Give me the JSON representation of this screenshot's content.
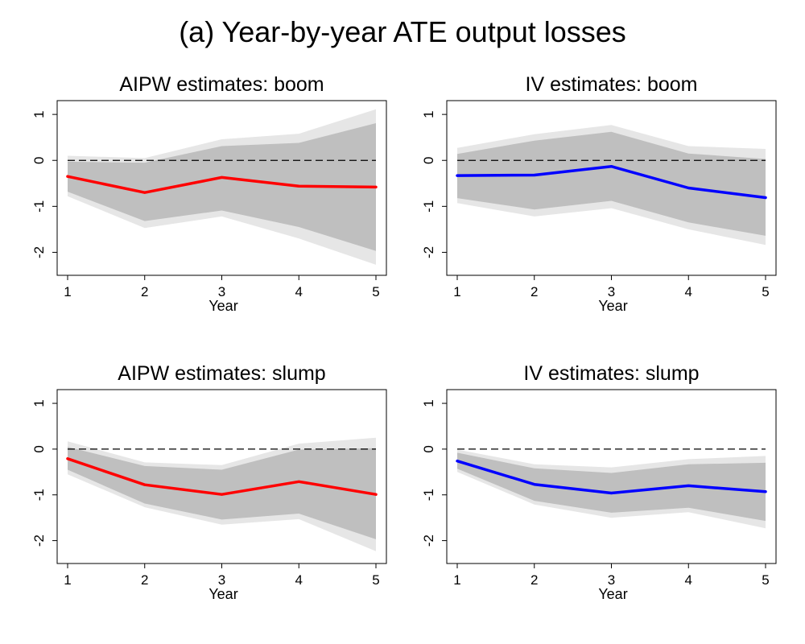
{
  "title": "(a) Year-by-year ATE output losses",
  "chart_data": [
    {
      "type": "line",
      "title": "AIPW estimates: boom",
      "xlabel": "Year",
      "ylabel": "",
      "x": [
        1,
        2,
        3,
        4,
        5
      ],
      "xticks": [
        "1",
        "2",
        "3",
        "4",
        "5"
      ],
      "yticks": [
        "1",
        "0",
        "-1",
        "-2"
      ],
      "ylim": [
        -2.5,
        1.3
      ],
      "color": "#ff0000",
      "series": [
        {
          "values": [
            -0.35,
            -0.7,
            -0.37,
            -0.56,
            -0.58
          ]
        }
      ],
      "band_inner_low": [
        -0.68,
        -1.32,
        -1.09,
        -1.45,
        -1.97
      ],
      "band_inner_high": [
        -0.03,
        -0.05,
        0.31,
        0.38,
        0.81
      ],
      "band_outer_low": [
        -0.78,
        -1.47,
        -1.22,
        -1.7,
        -2.27
      ],
      "band_outer_high": [
        0.1,
        0.05,
        0.46,
        0.58,
        1.11
      ],
      "zero_line": 0
    },
    {
      "type": "line",
      "title": "IV estimates: boom",
      "xlabel": "Year",
      "ylabel": "",
      "x": [
        1,
        2,
        3,
        4,
        5
      ],
      "xticks": [
        "1",
        "2",
        "3",
        "4",
        "5"
      ],
      "yticks": [
        "1",
        "0",
        "-1",
        "-2"
      ],
      "ylim": [
        -2.5,
        1.3
      ],
      "color": "#0000ff",
      "series": [
        {
          "values": [
            -0.33,
            -0.32,
            -0.13,
            -0.6,
            -0.81
          ]
        }
      ],
      "band_inner_low": [
        -0.82,
        -1.07,
        -0.88,
        -1.35,
        -1.64
      ],
      "band_inner_high": [
        0.14,
        0.43,
        0.62,
        0.15,
        0.03
      ],
      "band_outer_low": [
        -0.93,
        -1.22,
        -1.04,
        -1.5,
        -1.84
      ],
      "band_outer_high": [
        0.27,
        0.57,
        0.77,
        0.31,
        0.25
      ],
      "zero_line": 0
    },
    {
      "type": "line",
      "title": "AIPW estimates: slump",
      "xlabel": "Year",
      "ylabel": "",
      "x": [
        1,
        2,
        3,
        4,
        5
      ],
      "xticks": [
        "1",
        "2",
        "3",
        "4",
        "5"
      ],
      "yticks": [
        "1",
        "0",
        "-1",
        "-2"
      ],
      "ylim": [
        -2.5,
        1.3
      ],
      "color": "#ff0000",
      "series": [
        {
          "values": [
            -0.21,
            -0.78,
            -0.99,
            -0.71,
            -0.99
          ]
        }
      ],
      "band_inner_low": [
        -0.45,
        -1.19,
        -1.54,
        -1.41,
        -1.97
      ],
      "band_inner_high": [
        0.05,
        -0.37,
        -0.45,
        -0.01,
        0.02
      ],
      "band_outer_low": [
        -0.55,
        -1.27,
        -1.65,
        -1.53,
        -2.23
      ],
      "band_outer_high": [
        0.17,
        -0.29,
        -0.35,
        0.12,
        0.25
      ],
      "zero_line": 0
    },
    {
      "type": "line",
      "title": "IV estimates: slump",
      "xlabel": "Year",
      "ylabel": "",
      "x": [
        1,
        2,
        3,
        4,
        5
      ],
      "xticks": [
        "1",
        "2",
        "3",
        "4",
        "5"
      ],
      "yticks": [
        "1",
        "0",
        "-1",
        "-2"
      ],
      "ylim": [
        -2.5,
        1.3
      ],
      "color": "#0000ff",
      "series": [
        {
          "values": [
            -0.26,
            -0.77,
            -0.96,
            -0.8,
            -0.93
          ]
        }
      ],
      "band_inner_low": [
        -0.43,
        -1.13,
        -1.39,
        -1.28,
        -1.57
      ],
      "band_inner_high": [
        -0.08,
        -0.42,
        -0.52,
        -0.33,
        -0.3
      ],
      "band_outer_low": [
        -0.5,
        -1.21,
        -1.5,
        -1.38,
        -1.73
      ],
      "band_outer_high": [
        -0.01,
        -0.33,
        -0.4,
        -0.22,
        -0.15
      ],
      "zero_line": 0
    }
  ]
}
